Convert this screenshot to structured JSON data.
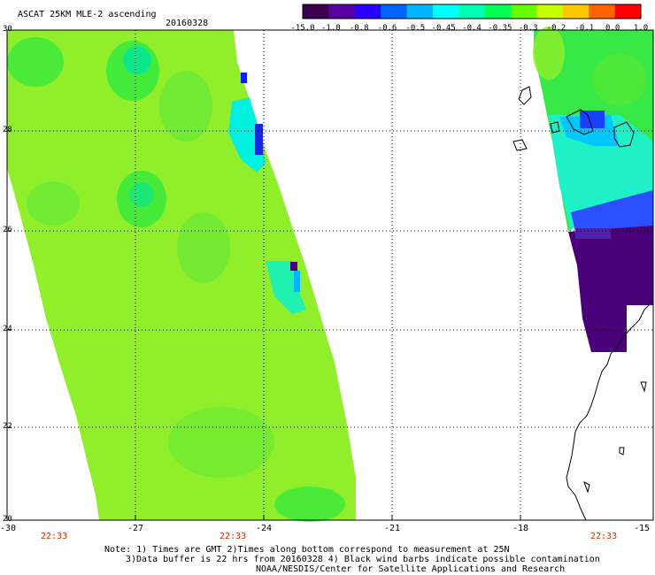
{
  "header": {
    "product": "ASCAT 25KM MLE-2 ascending",
    "date": "20160328"
  },
  "colorbar": {
    "labels": [
      "-15.0",
      "-1.0",
      "-0.8",
      "-0.6",
      "-0.5",
      "-0.45",
      "-0.4",
      "-0.35",
      "-0.3",
      "-0.2",
      "-0.1",
      "0.0",
      "1.0"
    ],
    "colors": [
      "#3c0050",
      "#5a00a0",
      "#2800ff",
      "#0064ff",
      "#00b4ff",
      "#00ffff",
      "#00ffb4",
      "#00ff50",
      "#64ff00",
      "#c8ff00",
      "#ffc800",
      "#ff6400",
      "#ff0000"
    ]
  },
  "chart_data": {
    "type": "heatmap",
    "title": "ASCAT 25KM MLE-2 ascending",
    "subtitle": "20160328",
    "x_ticks": [
      "-30",
      "-27",
      "-24",
      "-21",
      "-18",
      "-15"
    ],
    "y_ticks": [
      "30",
      "28",
      "26",
      "24",
      "22",
      "20"
    ],
    "xlim": [
      -30,
      -15
    ],
    "ylim": [
      20,
      30
    ],
    "grid": true,
    "legend": "colorbar top-right",
    "color_scale_labels": [
      "-15.0",
      "-1.0",
      "-0.8",
      "-0.6",
      "-0.5",
      "-0.45",
      "-0.4",
      "-0.35",
      "-0.3",
      "-0.2",
      "-0.1",
      "0.0",
      "1.0"
    ]
  },
  "time_labels": [
    "22:33",
    "22:33",
    "22:33"
  ],
  "footer": {
    "note1": "Note: 1) Times are GMT 2)Times along bottom correspond to measurement at 25N",
    "note2": "3)Data buffer is 22 hrs from 20160328 4) Black wind barbs indicate possible contamination",
    "note3": "NOAA/NESDIS/Center for Satellite Applications and Research"
  }
}
